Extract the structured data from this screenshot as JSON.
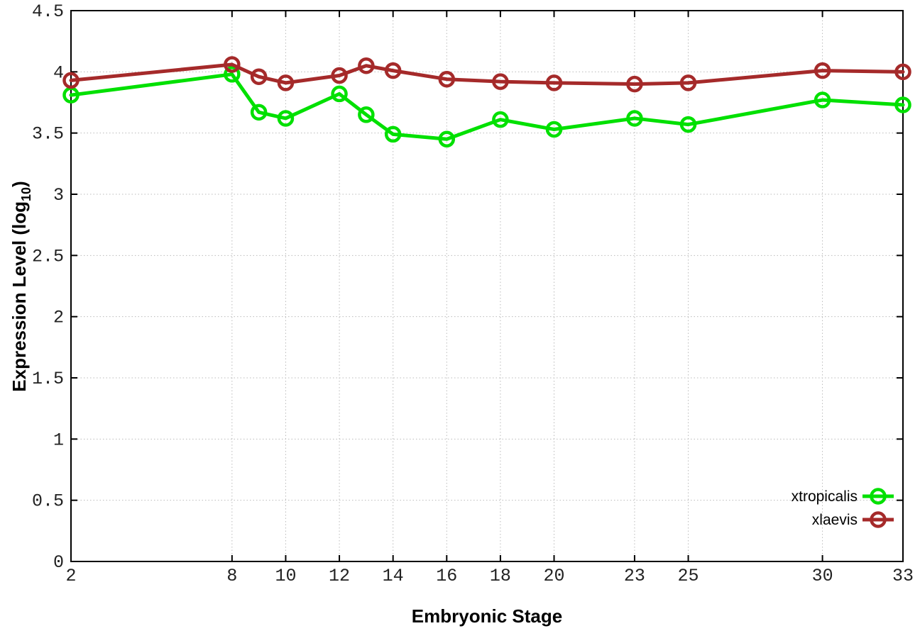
{
  "chart_data": {
    "type": "line",
    "title": "",
    "xlabel": "Embryonic Stage",
    "ylabel": "Expression Level (log10)",
    "ylabel_main": "Expression Level (log",
    "ylabel_sub": "10",
    "ylabel_close": ")",
    "x": [
      2,
      8,
      9,
      10,
      12,
      13,
      14,
      16,
      18,
      20,
      23,
      25,
      30,
      33
    ],
    "series": [
      {
        "name": "xtropicalis",
        "color": "#00e000",
        "values": [
          3.81,
          3.98,
          3.67,
          3.62,
          3.82,
          3.65,
          3.49,
          3.45,
          3.61,
          3.53,
          3.62,
          3.57,
          3.77,
          3.73
        ]
      },
      {
        "name": "xlaevis",
        "color": "#a52a2a",
        "values": [
          3.93,
          4.06,
          3.96,
          3.91,
          3.97,
          4.05,
          4.01,
          3.94,
          3.92,
          3.91,
          3.9,
          3.91,
          4.01,
          4.0
        ]
      }
    ],
    "xlim": [
      2,
      33
    ],
    "ylim": [
      0,
      4.5
    ],
    "xticks": [
      2,
      8,
      10,
      12,
      14,
      16,
      18,
      20,
      23,
      25,
      30,
      33
    ],
    "xtick_labels": [
      "2",
      "8",
      "10",
      "12",
      "14",
      "16",
      "18",
      "20",
      "23",
      "25",
      "30",
      "33"
    ],
    "yticks": [
      0,
      0.5,
      1,
      1.5,
      2,
      2.5,
      3,
      3.5,
      4,
      4.5
    ],
    "ytick_labels": [
      "0",
      "0.5",
      "1",
      "1.5",
      "2",
      "2.5",
      "3",
      "3.5",
      "4",
      "4.5"
    ],
    "grid": true,
    "grid_color": "#bbbbbb",
    "border_color": "#000000",
    "background_color": "#ffffff",
    "legend_position": "inside-bottom-right",
    "legend_entries": [
      "xtropicalis",
      "xlaevis"
    ],
    "marker": "open-circle"
  }
}
